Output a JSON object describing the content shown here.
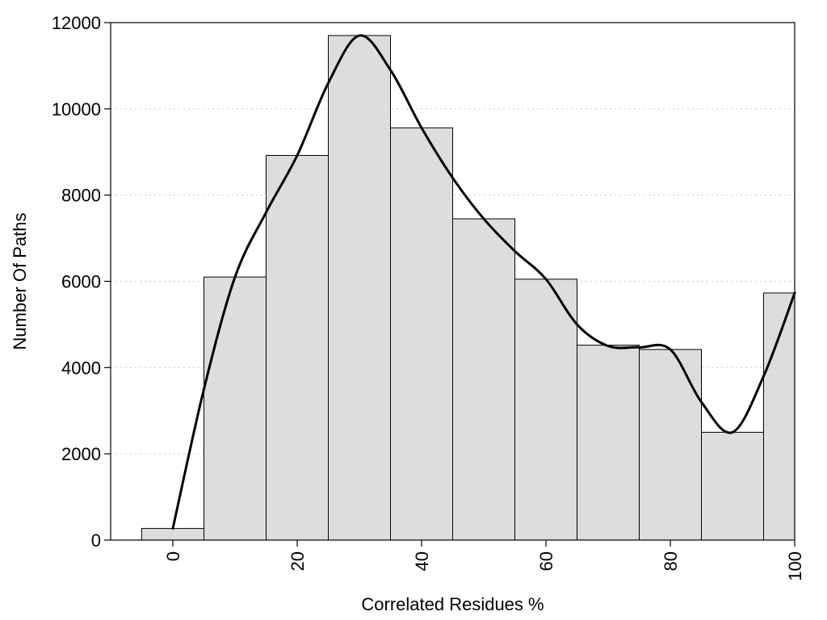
{
  "chart_data": {
    "type": "bar",
    "xlabel": "Correlated Residues %",
    "ylabel": "Number Of Paths",
    "x": [
      0,
      10,
      20,
      30,
      40,
      50,
      60,
      70,
      80,
      90,
      100
    ],
    "values": [
      270,
      6100,
      8920,
      11700,
      9560,
      7450,
      6050,
      4520,
      4420,
      2500,
      5730
    ],
    "bin_width": 10,
    "xlim": [
      -10,
      100
    ],
    "ylim": [
      0,
      12000
    ],
    "x_ticks": [
      0,
      20,
      40,
      60,
      80,
      100
    ],
    "y_ticks": [
      0,
      2000,
      4000,
      6000,
      8000,
      10000,
      12000
    ],
    "grid": "horizontal-dotted",
    "bar_color": "#dddddd",
    "curve": {
      "x": [
        0,
        5,
        10,
        15,
        20,
        25,
        30,
        35,
        40,
        45,
        50,
        55,
        60,
        65,
        70,
        75,
        80,
        85,
        90,
        95,
        100
      ],
      "y": [
        270,
        3500,
        6100,
        7600,
        8920,
        10600,
        11700,
        10900,
        9560,
        8400,
        7450,
        6700,
        6050,
        5000,
        4500,
        4470,
        4420,
        3200,
        2500,
        3800,
        5730
      ]
    }
  }
}
